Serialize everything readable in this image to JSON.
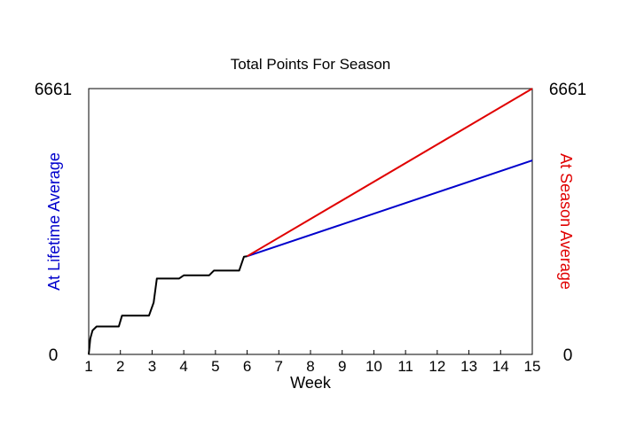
{
  "chart_data": {
    "type": "line",
    "title": "Total Points For Season",
    "xlabel": "Week",
    "ylabel_left": "At Lifetime Average",
    "ylabel_right": "At Season Average",
    "xlim": [
      1,
      15
    ],
    "ylim": [
      0,
      6661
    ],
    "x_ticks": [
      "1",
      "2",
      "3",
      "4",
      "5",
      "6",
      "7",
      "8",
      "9",
      "10",
      "11",
      "12",
      "13",
      "14",
      "15"
    ],
    "y_tick_labels_left": [
      "0",
      "6661"
    ],
    "y_tick_labels_right": [
      "0",
      "6661"
    ],
    "grid": false,
    "colors": {
      "actual": "#000000",
      "lifetime": "#0000cc",
      "season": "#e00000"
    },
    "series": [
      {
        "key": "actual",
        "points": [
          [
            1.0,
            0
          ],
          [
            1.05,
            400
          ],
          [
            1.12,
            600
          ],
          [
            1.25,
            700
          ],
          [
            1.5,
            700
          ],
          [
            1.75,
            700
          ],
          [
            1.95,
            700
          ],
          [
            2.05,
            970
          ],
          [
            2.5,
            970
          ],
          [
            2.9,
            970
          ],
          [
            3.05,
            1300
          ],
          [
            3.15,
            1900
          ],
          [
            3.5,
            1900
          ],
          [
            3.85,
            1900
          ],
          [
            4.0,
            1980
          ],
          [
            4.5,
            1980
          ],
          [
            4.8,
            1980
          ],
          [
            4.95,
            2100
          ],
          [
            5.5,
            2100
          ],
          [
            5.75,
            2100
          ],
          [
            5.9,
            2450
          ],
          [
            6.0,
            2460
          ]
        ]
      },
      {
        "key": "lifetime",
        "points": [
          [
            6.0,
            2460
          ],
          [
            15.0,
            4860
          ]
        ]
      },
      {
        "key": "season",
        "points": [
          [
            6.0,
            2460
          ],
          [
            15.0,
            6661
          ]
        ]
      }
    ]
  }
}
